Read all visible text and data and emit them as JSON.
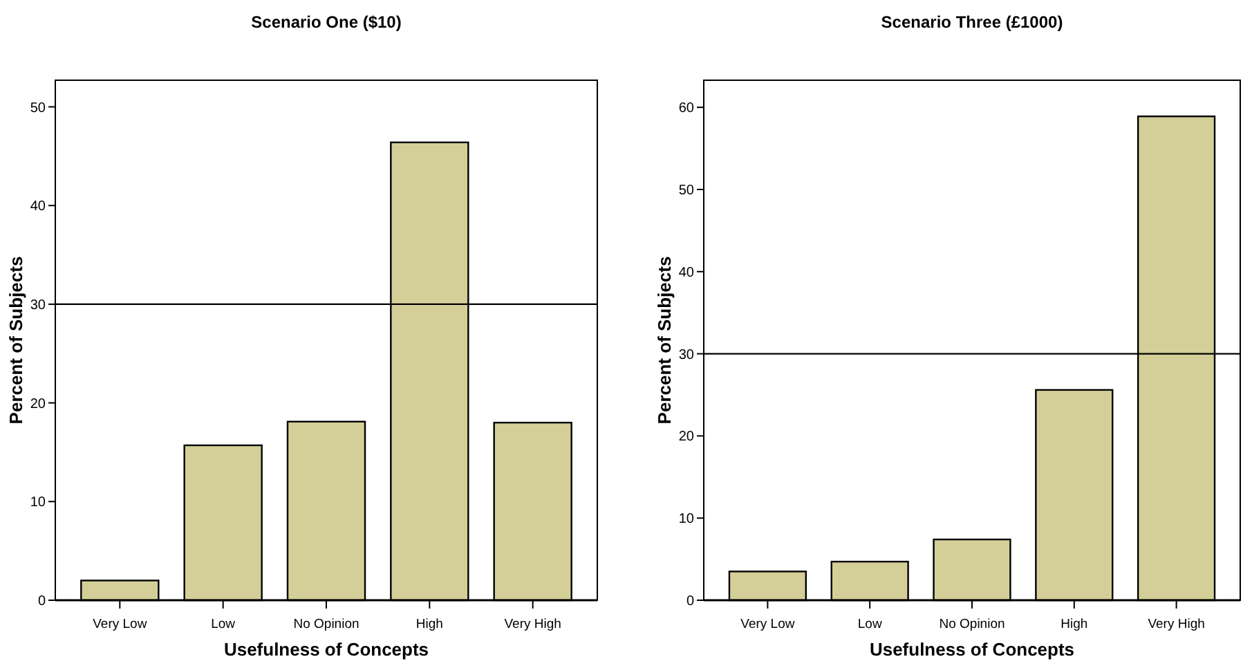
{
  "chart_data": [
    {
      "type": "bar",
      "title": "Scenario One ($10)",
      "xlabel": "Usefulness of Concepts",
      "ylabel": "Percent of Subjects",
      "categories": [
        "Very Low",
        "Low",
        "No Opinion",
        "High",
        "Very High"
      ],
      "values": [
        2.0,
        15.7,
        18.1,
        46.4,
        18.0
      ],
      "color": "#d4cf98",
      "ylim": [
        0,
        52.7
      ],
      "yticks": [
        0,
        10,
        20,
        30,
        40,
        50
      ],
      "ref_lines": [
        {
          "axis": "y",
          "value": 30,
          "color": "#000000"
        }
      ]
    },
    {
      "type": "bar",
      "title": "Scenario Three (£1000)",
      "xlabel": "Usefulness of Concepts",
      "ylabel": "Percent of Subjects",
      "categories": [
        "Very Low",
        "Low",
        "No Opinion",
        "High",
        "Very High"
      ],
      "values": [
        3.5,
        4.7,
        7.4,
        25.6,
        58.9
      ],
      "color": "#d4cf98",
      "ylim": [
        0,
        63.3
      ],
      "yticks": [
        0,
        10,
        20,
        30,
        40,
        50,
        60
      ],
      "ref_lines": [
        {
          "axis": "y",
          "value": 30,
          "color": "#000000"
        }
      ]
    }
  ]
}
